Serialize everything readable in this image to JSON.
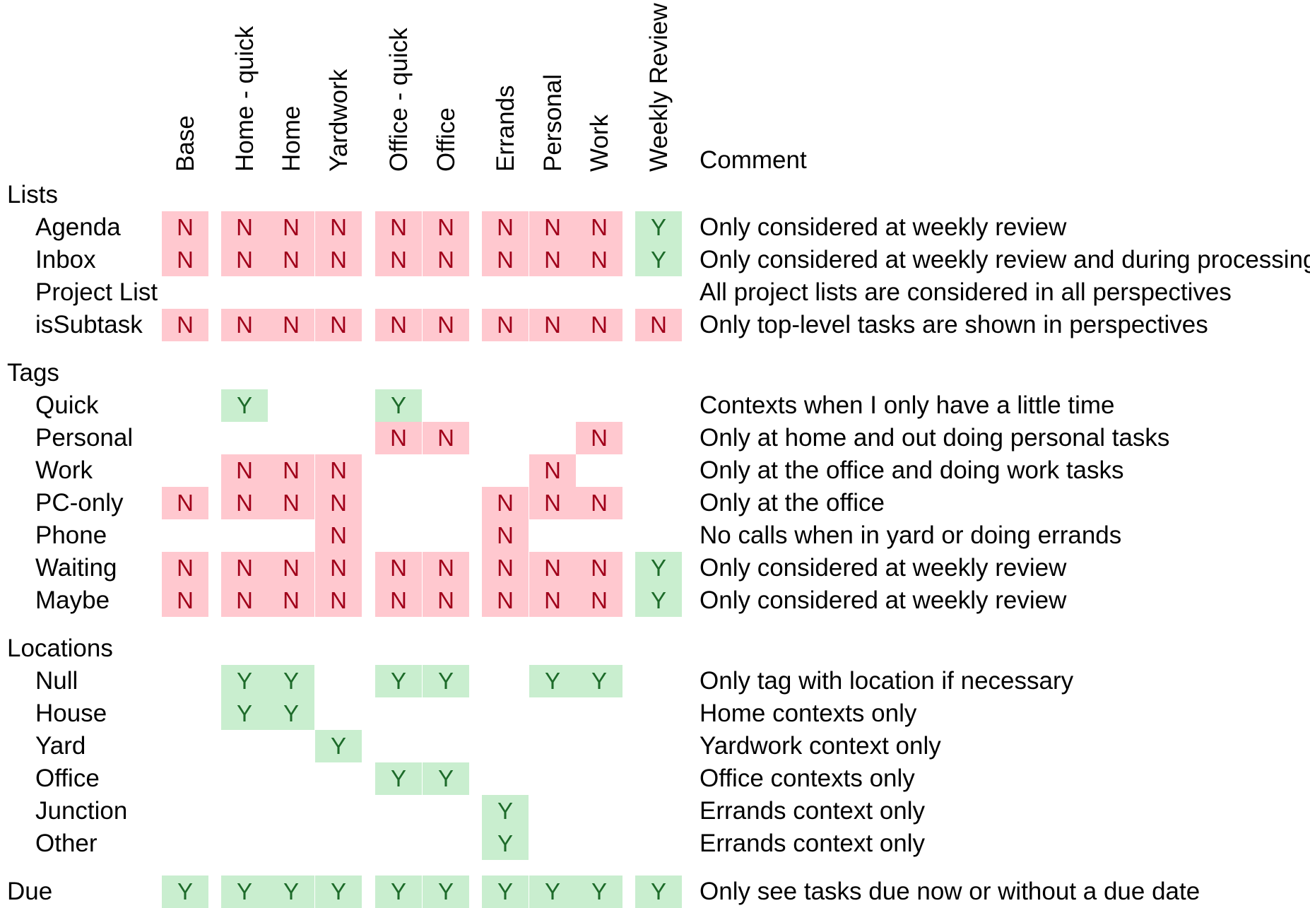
{
  "columns": [
    "Base",
    "Home - quick",
    "Home",
    "Yardwork",
    "Office - quick",
    "Office",
    "Errands",
    "Personal",
    "Work",
    "Weekly Review"
  ],
  "comment_header": "Comment",
  "sections": [
    {
      "title": "Lists",
      "rows": [
        {
          "label": "Agenda",
          "values": [
            "N",
            "N",
            "N",
            "N",
            "N",
            "N",
            "N",
            "N",
            "N",
            "Y"
          ],
          "comment": "Only considered at weekly review"
        },
        {
          "label": "Inbox",
          "values": [
            "N",
            "N",
            "N",
            "N",
            "N",
            "N",
            "N",
            "N",
            "N",
            "Y"
          ],
          "comment": "Only considered at weekly review and during processing"
        },
        {
          "label": "Project List",
          "values": [
            "",
            "",
            "",
            "",
            "",
            "",
            "",
            "",
            "",
            ""
          ],
          "comment": "All project lists are considered in all perspectives"
        },
        {
          "label": "isSubtask",
          "values": [
            "N",
            "N",
            "N",
            "N",
            "N",
            "N",
            "N",
            "N",
            "N",
            "N"
          ],
          "comment": "Only top-level tasks are shown in perspectives"
        }
      ]
    },
    {
      "title": "Tags",
      "rows": [
        {
          "label": "Quick",
          "values": [
            "",
            "Y",
            "",
            "",
            "Y",
            "",
            "",
            "",
            "",
            ""
          ],
          "comment": "Contexts when I only have a little time"
        },
        {
          "label": "Personal",
          "values": [
            "",
            "",
            "",
            "",
            "N",
            "N",
            "",
            "",
            "N",
            ""
          ],
          "comment": "Only at home and out doing personal tasks"
        },
        {
          "label": "Work",
          "values": [
            "",
            "N",
            "N",
            "N",
            "",
            "",
            "",
            "N",
            "",
            ""
          ],
          "comment": "Only at the office and doing work tasks"
        },
        {
          "label": "PC-only",
          "values": [
            "N",
            "N",
            "N",
            "N",
            "",
            "",
            "N",
            "N",
            "N",
            ""
          ],
          "comment": "Only at the office"
        },
        {
          "label": "Phone",
          "values": [
            "",
            "",
            "",
            "N",
            "",
            "",
            "N",
            "",
            "",
            ""
          ],
          "comment": "No calls when in yard or doing errands"
        },
        {
          "label": "Waiting",
          "values": [
            "N",
            "N",
            "N",
            "N",
            "N",
            "N",
            "N",
            "N",
            "N",
            "Y"
          ],
          "comment": "Only considered at weekly review"
        },
        {
          "label": "Maybe",
          "values": [
            "N",
            "N",
            "N",
            "N",
            "N",
            "N",
            "N",
            "N",
            "N",
            "Y"
          ],
          "comment": "Only considered at weekly review"
        }
      ]
    },
    {
      "title": "Locations",
      "rows": [
        {
          "label": "Null",
          "values": [
            "",
            "Y",
            "Y",
            "",
            "Y",
            "Y",
            "",
            "Y",
            "Y",
            ""
          ],
          "comment": "Only tag with location if necessary"
        },
        {
          "label": "House",
          "values": [
            "",
            "Y",
            "Y",
            "",
            "",
            "",
            "",
            "",
            "",
            ""
          ],
          "comment": "Home contexts only"
        },
        {
          "label": "Yard",
          "values": [
            "",
            "",
            "",
            "Y",
            "",
            "",
            "",
            "",
            "",
            ""
          ],
          "comment": "Yardwork context only"
        },
        {
          "label": "Office",
          "values": [
            "",
            "",
            "",
            "",
            "Y",
            "Y",
            "",
            "",
            "",
            ""
          ],
          "comment": "Office contexts only"
        },
        {
          "label": "Junction",
          "values": [
            "",
            "",
            "",
            "",
            "",
            "",
            "Y",
            "",
            "",
            ""
          ],
          "comment": "Errands context only"
        },
        {
          "label": "Other",
          "values": [
            "",
            "",
            "",
            "",
            "",
            "",
            "Y",
            "",
            "",
            ""
          ],
          "comment": "Errands context only"
        }
      ]
    },
    {
      "title": "Due",
      "inline": true,
      "rows": [
        {
          "label": "",
          "values": [
            "Y",
            "Y",
            "Y",
            "Y",
            "Y",
            "Y",
            "Y",
            "Y",
            "Y",
            "Y"
          ],
          "comment": "Only see tasks due now or without a due date"
        }
      ]
    }
  ]
}
